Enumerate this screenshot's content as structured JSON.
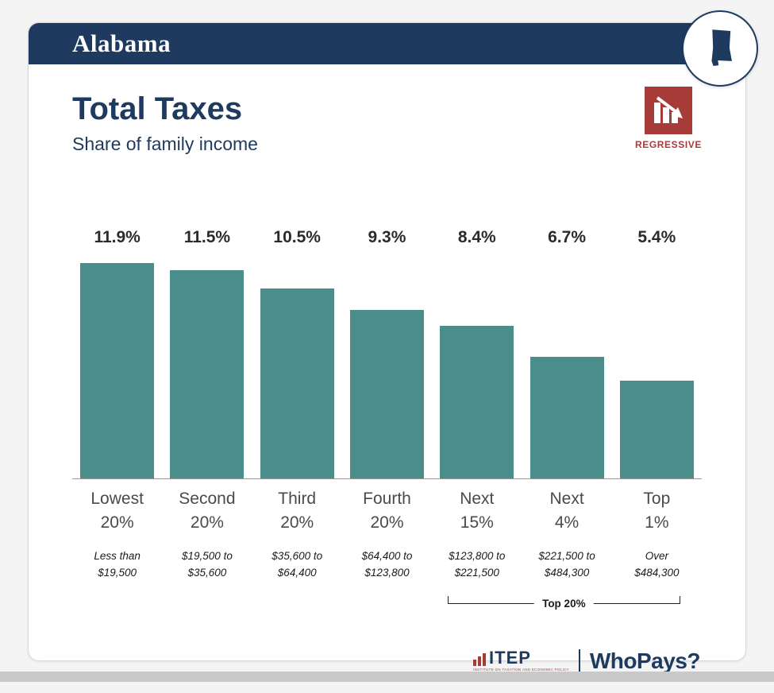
{
  "header": {
    "state": "Alabama"
  },
  "badge": {
    "label": "REGRESSIVE"
  },
  "chart_data": {
    "type": "bar",
    "title": "Total Taxes",
    "subtitle": "Share of family income",
    "categories": [
      "Lowest 20%",
      "Second 20%",
      "Third 20%",
      "Fourth 20%",
      "Next 15%",
      "Next 4%",
      "Top 1%"
    ],
    "cat_line1": [
      "Lowest",
      "Second",
      "Third",
      "Fourth",
      "Next",
      "Next",
      "Top"
    ],
    "cat_line2": [
      "20%",
      "20%",
      "20%",
      "20%",
      "15%",
      "4%",
      "1%"
    ],
    "values": [
      11.9,
      11.5,
      10.5,
      9.3,
      8.4,
      6.7,
      5.4
    ],
    "value_labels": [
      "11.9%",
      "11.5%",
      "10.5%",
      "9.3%",
      "8.4%",
      "6.7%",
      "5.4%"
    ],
    "range_line1": [
      "Less than",
      "$19,500 to",
      "$35,600 to",
      "$64,400 to",
      "$123,800 to",
      "$221,500 to",
      "Over"
    ],
    "range_line2": [
      "$19,500",
      "$35,600",
      "$64,400",
      "$123,800",
      "$221,500",
      "$484,300",
      "$484,300"
    ],
    "ylim": [
      0,
      12.5
    ],
    "bar_color": "#4a8d8b",
    "annotation": "Top 20%",
    "annotation_span_categories": [
      "Next 15%",
      "Next 4%",
      "Top 1%"
    ],
    "xlabel": "",
    "ylabel": "",
    "grid": "off",
    "legend": "none"
  },
  "footer": {
    "itep": "ITEP",
    "itep_caption": "INSTITUTE ON TAXATION AND ECONOMIC POLICY",
    "whopays": "WhoPays?"
  }
}
